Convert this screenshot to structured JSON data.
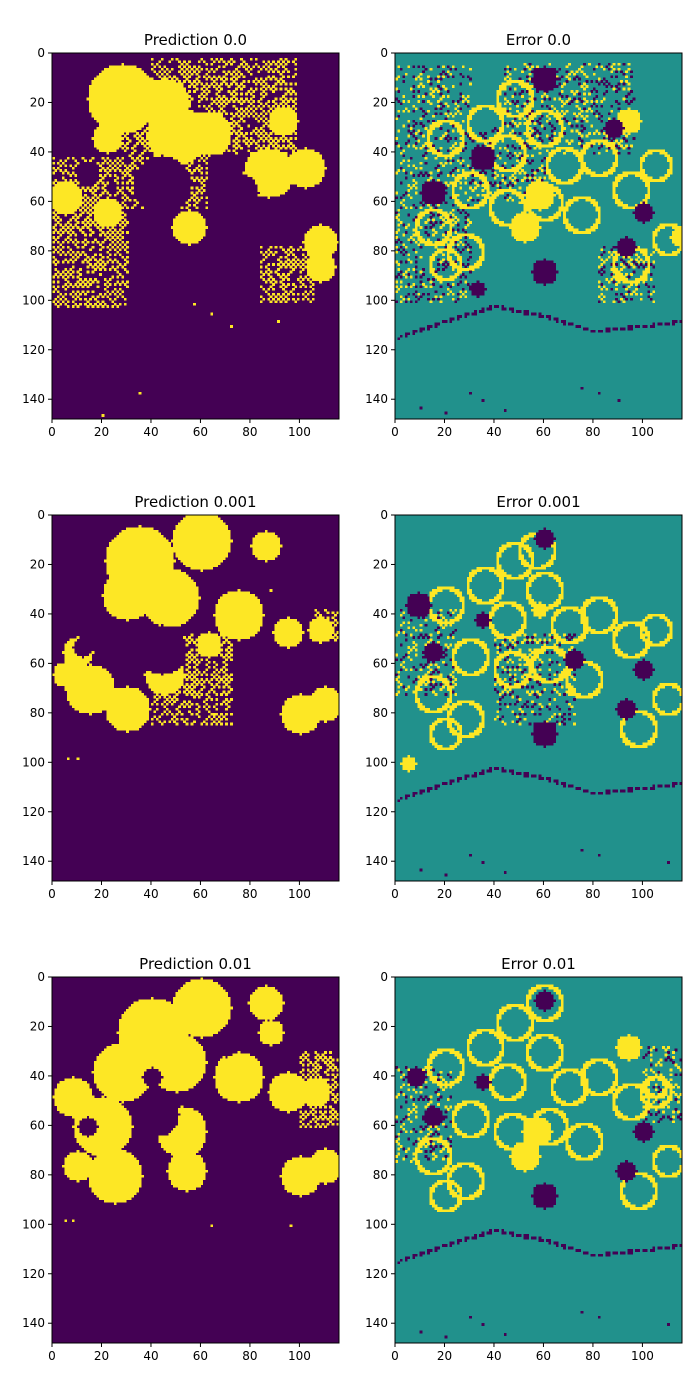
{
  "colors": {
    "low": "#440154",
    "mid": "#21918c",
    "high": "#fde725"
  },
  "chart_data": [
    {
      "type": "heatmap",
      "name": "prediction-0-0",
      "title": "Prediction 0.0",
      "kind": "prediction",
      "xlim": [
        0,
        116
      ],
      "ylim": [
        148,
        0
      ],
      "xticks": [
        0,
        20,
        40,
        60,
        80,
        100
      ],
      "yticks": [
        0,
        20,
        40,
        60,
        80,
        100,
        120,
        140
      ],
      "blobs": [
        [
          28,
          18,
          14
        ],
        [
          50,
          33,
          12
        ],
        [
          45,
          20,
          10
        ],
        [
          63,
          32,
          9
        ],
        [
          93,
          27,
          6
        ],
        [
          87,
          48,
          10
        ],
        [
          102,
          46,
          8
        ],
        [
          55,
          70,
          7
        ],
        [
          22,
          64,
          6
        ],
        [
          5,
          58,
          7
        ],
        [
          108,
          76,
          7
        ],
        [
          108,
          86,
          6
        ],
        [
          22,
          34,
          6
        ]
      ],
      "checker": [
        [
          0,
          42,
          30,
          102
        ],
        [
          28,
          30,
          62,
          62
        ],
        [
          40,
          2,
          98,
          40
        ],
        [
          84,
          78,
          106,
          100
        ]
      ],
      "holes": [
        [
          44,
          53,
          12
        ],
        [
          75,
          56,
          8
        ],
        [
          14,
          48,
          5
        ]
      ],
      "specks": [
        [
          64,
          105
        ],
        [
          72,
          110
        ],
        [
          57,
          101
        ],
        [
          20,
          146
        ],
        [
          35,
          137
        ],
        [
          91,
          108
        ]
      ]
    },
    {
      "type": "heatmap",
      "name": "error-0-0",
      "title": "Error 0.0",
      "kind": "error",
      "xlim": [
        0,
        116
      ],
      "ylim": [
        148,
        0
      ],
      "xticks": [
        0,
        20,
        40,
        60,
        80,
        100
      ],
      "yticks": [
        0,
        20,
        40,
        60,
        80,
        100,
        120,
        140
      ],
      "circles": [
        [
          20,
          34,
          7
        ],
        [
          36,
          28,
          7
        ],
        [
          48,
          18,
          7
        ],
        [
          45,
          40,
          7
        ],
        [
          60,
          30,
          7
        ],
        [
          68,
          45,
          7
        ],
        [
          82,
          42,
          7
        ],
        [
          95,
          55,
          7
        ],
        [
          30,
          55,
          7
        ],
        [
          45,
          62,
          7
        ],
        [
          60,
          60,
          7
        ],
        [
          75,
          65,
          7
        ],
        [
          15,
          70,
          7
        ],
        [
          28,
          80,
          7
        ],
        [
          105,
          45,
          6
        ],
        [
          95,
          85,
          7
        ],
        [
          110,
          75,
          6
        ],
        [
          20,
          85,
          6
        ]
      ],
      "yellowBlobs": [
        [
          58,
          57,
          6
        ],
        [
          52,
          70,
          6
        ],
        [
          94,
          27,
          5
        ],
        [
          115,
          74,
          4
        ]
      ],
      "darkBlobs": [
        [
          15,
          56,
          5
        ],
        [
          60,
          88,
          5
        ],
        [
          35,
          42,
          5
        ],
        [
          93,
          78,
          4
        ],
        [
          88,
          30,
          4
        ],
        [
          100,
          64,
          4
        ],
        [
          60,
          10,
          5
        ],
        [
          33,
          95,
          3
        ]
      ],
      "curve": [
        [
          0,
          115
        ],
        [
          20,
          108
        ],
        [
          40,
          102
        ],
        [
          60,
          106
        ],
        [
          80,
          112
        ],
        [
          100,
          110
        ],
        [
          116,
          108
        ]
      ],
      "checker": [
        [
          0,
          5,
          30,
          100
        ],
        [
          30,
          30,
          60,
          60
        ],
        [
          44,
          4,
          96,
          40
        ],
        [
          82,
          78,
          104,
          100
        ]
      ],
      "specks": [
        [
          30,
          137
        ],
        [
          35,
          140
        ],
        [
          44,
          144
        ],
        [
          20,
          145
        ],
        [
          75,
          135
        ],
        [
          82,
          137
        ],
        [
          10,
          143
        ],
        [
          90,
          140
        ]
      ]
    },
    {
      "type": "heatmap",
      "name": "prediction-0-001",
      "title": "Prediction 0.001",
      "kind": "prediction",
      "xlim": [
        0,
        116
      ],
      "ylim": [
        148,
        0
      ],
      "xticks": [
        0,
        20,
        40,
        60,
        80,
        100
      ],
      "yticks": [
        0,
        20,
        40,
        60,
        80,
        100,
        120,
        140
      ],
      "blobs": [
        [
          35,
          18,
          14
        ],
        [
          60,
          10,
          12
        ],
        [
          47,
          33,
          12
        ],
        [
          75,
          40,
          10
        ],
        [
          30,
          32,
          10
        ],
        [
          86,
          12,
          6
        ],
        [
          95,
          47,
          6
        ],
        [
          108,
          46,
          5
        ],
        [
          10,
          55,
          6
        ],
        [
          15,
          70,
          10
        ],
        [
          30,
          78,
          9
        ],
        [
          45,
          64,
          8
        ],
        [
          100,
          80,
          8
        ],
        [
          110,
          76,
          7
        ],
        [
          5,
          64,
          5
        ],
        [
          63,
          52,
          5
        ]
      ],
      "checker": [
        [
          40,
          48,
          72,
          84
        ],
        [
          106,
          38,
          116,
          50
        ]
      ],
      "holes": [
        [
          44,
          54,
          10
        ],
        [
          12,
          53,
          4
        ]
      ],
      "specks": [
        [
          6,
          98
        ],
        [
          10,
          98
        ],
        [
          65,
          80
        ],
        [
          68,
          84
        ],
        [
          108,
          40
        ],
        [
          112,
          44
        ],
        [
          88,
          30
        ]
      ]
    },
    {
      "type": "heatmap",
      "name": "error-0-001",
      "title": "Error 0.001",
      "kind": "error",
      "xlim": [
        0,
        116
      ],
      "ylim": [
        148,
        0
      ],
      "xticks": [
        0,
        20,
        40,
        60,
        80,
        100
      ],
      "yticks": [
        0,
        20,
        40,
        60,
        80,
        100,
        120,
        140
      ],
      "circles": [
        [
          20,
          36,
          7
        ],
        [
          36,
          28,
          7
        ],
        [
          48,
          18,
          7
        ],
        [
          45,
          42,
          7
        ],
        [
          60,
          30,
          7
        ],
        [
          70,
          44,
          7
        ],
        [
          82,
          40,
          7
        ],
        [
          95,
          50,
          7
        ],
        [
          30,
          57,
          7
        ],
        [
          47,
          62,
          7
        ],
        [
          62,
          60,
          7
        ],
        [
          76,
          66,
          7
        ],
        [
          15,
          72,
          7
        ],
        [
          28,
          82,
          7
        ],
        [
          105,
          46,
          6
        ],
        [
          98,
          86,
          7
        ],
        [
          110,
          74,
          6
        ],
        [
          20,
          88,
          6
        ],
        [
          57,
          14,
          7
        ]
      ],
      "yellowBlobs": [
        [
          58,
          38,
          3
        ],
        [
          5,
          100,
          3
        ]
      ],
      "darkBlobs": [
        [
          9,
          36,
          5
        ],
        [
          15,
          55,
          4
        ],
        [
          60,
          88,
          5
        ],
        [
          93,
          78,
          4
        ],
        [
          100,
          62,
          4
        ],
        [
          60,
          9,
          4
        ],
        [
          35,
          42,
          3
        ],
        [
          72,
          58,
          4
        ]
      ],
      "curve": [
        [
          0,
          115
        ],
        [
          20,
          108
        ],
        [
          40,
          102
        ],
        [
          60,
          106
        ],
        [
          80,
          112
        ],
        [
          100,
          110
        ],
        [
          116,
          108
        ]
      ],
      "checker": [
        [
          0,
          38,
          24,
          72
        ],
        [
          40,
          48,
          72,
          84
        ]
      ],
      "specks": [
        [
          30,
          137
        ],
        [
          35,
          140
        ],
        [
          44,
          144
        ],
        [
          20,
          145
        ],
        [
          75,
          135
        ],
        [
          82,
          137
        ],
        [
          10,
          143
        ],
        [
          110,
          140
        ]
      ]
    },
    {
      "type": "heatmap",
      "name": "prediction-0-01",
      "title": "Prediction 0.01",
      "kind": "prediction",
      "xlim": [
        0,
        116
      ],
      "ylim": [
        148,
        0
      ],
      "xticks": [
        0,
        20,
        40,
        60,
        80,
        100
      ],
      "yticks": [
        0,
        20,
        40,
        60,
        80,
        100,
        120,
        140
      ],
      "blobs": [
        [
          40,
          22,
          14
        ],
        [
          60,
          12,
          12
        ],
        [
          28,
          38,
          12
        ],
        [
          50,
          34,
          12
        ],
        [
          75,
          40,
          10
        ],
        [
          86,
          10,
          7
        ],
        [
          95,
          46,
          8
        ],
        [
          106,
          46,
          6
        ],
        [
          8,
          48,
          8
        ],
        [
          20,
          60,
          12
        ],
        [
          25,
          80,
          11
        ],
        [
          52,
          62,
          10
        ],
        [
          54,
          78,
          8
        ],
        [
          10,
          76,
          6
        ],
        [
          100,
          80,
          8
        ],
        [
          110,
          76,
          7
        ],
        [
          88,
          22,
          5
        ]
      ],
      "checker": [
        [
          100,
          30,
          116,
          60
        ]
      ],
      "holes": [
        [
          42,
          55,
          9
        ],
        [
          14,
          60,
          4
        ],
        [
          40,
          40,
          4
        ],
        [
          70,
          28,
          4
        ]
      ],
      "specks": [
        [
          5,
          98
        ],
        [
          8,
          98
        ],
        [
          96,
          100
        ],
        [
          64,
          100
        ],
        [
          110,
          41
        ]
      ]
    },
    {
      "type": "heatmap",
      "name": "error-0-01",
      "title": "Error 0.01",
      "kind": "error",
      "xlim": [
        0,
        116
      ],
      "ylim": [
        148,
        0
      ],
      "xticks": [
        0,
        20,
        40,
        60,
        80,
        100
      ],
      "yticks": [
        0,
        20,
        40,
        60,
        80,
        100,
        120,
        140
      ],
      "circles": [
        [
          20,
          36,
          7
        ],
        [
          36,
          28,
          7
        ],
        [
          48,
          18,
          7
        ],
        [
          45,
          42,
          7
        ],
        [
          60,
          30,
          7
        ],
        [
          70,
          44,
          7
        ],
        [
          82,
          40,
          7
        ],
        [
          95,
          50,
          7
        ],
        [
          30,
          57,
          7
        ],
        [
          47,
          62,
          7
        ],
        [
          62,
          60,
          7
        ],
        [
          76,
          66,
          7
        ],
        [
          15,
          72,
          7
        ],
        [
          28,
          82,
          7
        ],
        [
          105,
          46,
          6
        ],
        [
          98,
          86,
          7
        ],
        [
          110,
          74,
          6
        ],
        [
          20,
          88,
          6
        ],
        [
          60,
          10,
          7
        ],
        [
          105,
          44,
          4
        ]
      ],
      "yellowBlobs": [
        [
          57,
          62,
          6
        ],
        [
          52,
          72,
          6
        ],
        [
          94,
          28,
          5
        ]
      ],
      "darkBlobs": [
        [
          15,
          56,
          4
        ],
        [
          60,
          88,
          5
        ],
        [
          93,
          78,
          4
        ],
        [
          100,
          62,
          4
        ],
        [
          60,
          9,
          4
        ],
        [
          35,
          42,
          3
        ],
        [
          8,
          40,
          4
        ]
      ],
      "curve": [
        [
          0,
          115
        ],
        [
          20,
          108
        ],
        [
          40,
          102
        ],
        [
          60,
          106
        ],
        [
          80,
          112
        ],
        [
          100,
          110
        ],
        [
          116,
          108
        ]
      ],
      "checker": [
        [
          0,
          36,
          22,
          74
        ],
        [
          100,
          28,
          116,
          58
        ]
      ],
      "specks": [
        [
          30,
          137
        ],
        [
          35,
          140
        ],
        [
          44,
          144
        ],
        [
          20,
          145
        ],
        [
          75,
          135
        ],
        [
          82,
          137
        ],
        [
          10,
          143
        ],
        [
          110,
          140
        ]
      ]
    }
  ]
}
